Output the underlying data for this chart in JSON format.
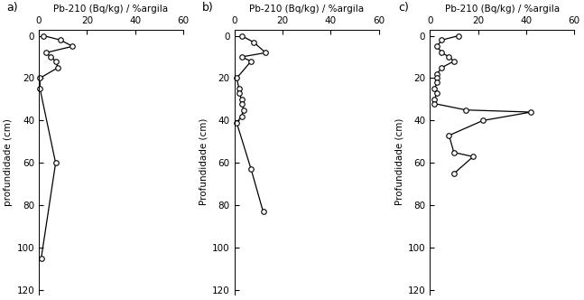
{
  "bg_color": "#ffffff",
  "line_color": "#000000",
  "marker_facecolor": "#ffffff",
  "marker_edgecolor": "#000000",
  "marker": "o",
  "markersize": 4.0,
  "linewidth": 0.9,
  "fontsize_label": 7.5,
  "fontsize_tick": 7.5,
  "fontsize_panel": 9,
  "xlim": [
    0,
    60
  ],
  "ylim": [
    122,
    -3
  ],
  "xticks": [
    0,
    20,
    40,
    60
  ],
  "yticks": [
    0,
    20,
    40,
    60,
    80,
    100,
    120
  ],
  "panels": [
    {
      "label": "a)",
      "ylabel": "profundidade (cm)",
      "xlabel": "Pb-210 (Bq/kg) / %argila",
      "x_data": [
        2,
        9,
        14,
        3,
        5,
        7,
        8,
        0.5,
        0.5,
        7,
        1
      ],
      "y_data": [
        0,
        2,
        5,
        8,
        10,
        12,
        15,
        20,
        25,
        60,
        105
      ]
    },
    {
      "label": "b)",
      "ylabel": "Profundidade (cm)",
      "xlabel": "Pb-210 (Bq/kg) / %argila",
      "x_data": [
        3,
        8,
        13,
        3,
        7,
        1,
        2,
        2,
        3,
        3,
        4,
        3,
        1,
        7,
        12
      ],
      "y_data": [
        0,
        3,
        8,
        10,
        12,
        20,
        25,
        27,
        30,
        32,
        35,
        38,
        41,
        63,
        83
      ]
    },
    {
      "label": "c)",
      "ylabel": "Profundidade (cm)",
      "xlabel": "Pb-210 (Bq/kg) / %argila",
      "x_data": [
        12,
        5,
        3,
        5,
        8,
        10,
        5,
        3,
        3,
        3,
        2,
        3,
        2,
        2,
        15,
        42,
        22,
        8,
        10,
        18,
        10
      ],
      "y_data": [
        0,
        2,
        5,
        8,
        10,
        12,
        15,
        18,
        20,
        22,
        25,
        27,
        30,
        32,
        35,
        36,
        40,
        47,
        55,
        57,
        65
      ]
    }
  ]
}
